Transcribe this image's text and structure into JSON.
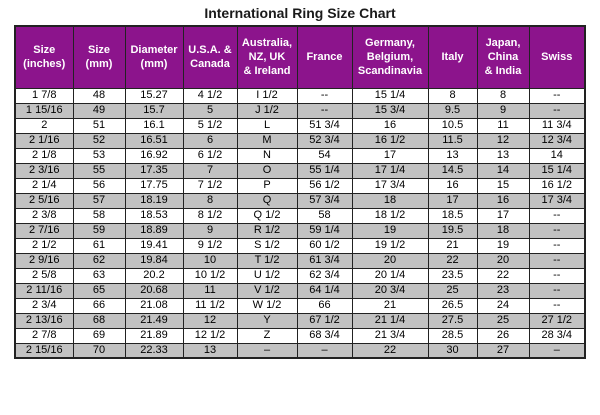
{
  "title": "International Ring Size Chart",
  "colors": {
    "header_bg": "#8C148C",
    "header_text": "#FFFFFF",
    "row_odd_bg": "#FFFFFF",
    "row_even_bg": "#C2C2C2",
    "border": "#222222",
    "text": "#000000"
  },
  "chart_data": {
    "type": "table",
    "title": "International Ring Size Chart",
    "columns": [
      "Size\n(inches)",
      "Size\n(mm)",
      "Diameter\n(mm)",
      "U.S.A. &\nCanada",
      "Australia,\nNZ, UK\n& Ireland",
      "France",
      "Germany,\nBelgium,\nScandinavia",
      "Italy",
      "Japan,\nChina\n& India",
      "Swiss"
    ],
    "rows": [
      [
        "1 7/8",
        "48",
        "15.27",
        "4 1/2",
        "I 1/2",
        "--",
        "15 1/4",
        "8",
        "8",
        "--"
      ],
      [
        "1 15/16",
        "49",
        "15.7",
        "5",
        "J 1/2",
        "--",
        "15 3/4",
        "9.5",
        "9",
        "--"
      ],
      [
        "2",
        "51",
        "16.1",
        "5 1/2",
        "L",
        "51 3/4",
        "16",
        "10.5",
        "11",
        "11 3/4"
      ],
      [
        "2 1/16",
        "52",
        "16.51",
        "6",
        "M",
        "52 3/4",
        "16 1/2",
        "11.5",
        "12",
        "12 3/4"
      ],
      [
        "2 1/8",
        "53",
        "16.92",
        "6 1/2",
        "N",
        "54",
        "17",
        "13",
        "13",
        "14"
      ],
      [
        "2 3/16",
        "55",
        "17.35",
        "7",
        "O",
        "55 1/4",
        "17 1/4",
        "14.5",
        "14",
        "15 1/4"
      ],
      [
        "2 1/4",
        "56",
        "17.75",
        "7 1/2",
        "P",
        "56 1/2",
        "17 3/4",
        "16",
        "15",
        "16 1/2"
      ],
      [
        "2 5/16",
        "57",
        "18.19",
        "8",
        "Q",
        "57 3/4",
        "18",
        "17",
        "16",
        "17 3/4"
      ],
      [
        "2 3/8",
        "58",
        "18.53",
        "8 1/2",
        "Q 1/2",
        "58",
        "18 1/2",
        "18.5",
        "17",
        "--"
      ],
      [
        "2 7/16",
        "59",
        "18.89",
        "9",
        "R 1/2",
        "59 1/4",
        "19",
        "19.5",
        "18",
        "--"
      ],
      [
        "2 1/2",
        "61",
        "19.41",
        "9 1/2",
        "S 1/2",
        "60 1/2",
        "19 1/2",
        "21",
        "19",
        "--"
      ],
      [
        "2 9/16",
        "62",
        "19.84",
        "10",
        "T 1/2",
        "61 3/4",
        "20",
        "22",
        "20",
        "--"
      ],
      [
        "2 5/8",
        "63",
        "20.2",
        "10 1/2",
        "U 1/2",
        "62 3/4",
        "20 1/4",
        "23.5",
        "22",
        "--"
      ],
      [
        "2 11/16",
        "65",
        "20.68",
        "11",
        "V 1/2",
        "64 1/4",
        "20 3/4",
        "25",
        "23",
        "--"
      ],
      [
        "2 3/4",
        "66",
        "21.08",
        "11 1/2",
        "W 1/2",
        "66",
        "21",
        "26.5",
        "24",
        "--"
      ],
      [
        "2 13/16",
        "68",
        "21.49",
        "12",
        "Y",
        "67 1/2",
        "21 1/4",
        "27.5",
        "25",
        "27 1/2"
      ],
      [
        "2 7/8",
        "69",
        "21.89",
        "12 1/2",
        "Z",
        "68 3/4",
        "21 3/4",
        "28.5",
        "26",
        "28 3/4"
      ],
      [
        "2 15/16",
        "70",
        "22.33",
        "13",
        "–",
        "–",
        "22",
        "30",
        "27",
        "–"
      ]
    ]
  }
}
